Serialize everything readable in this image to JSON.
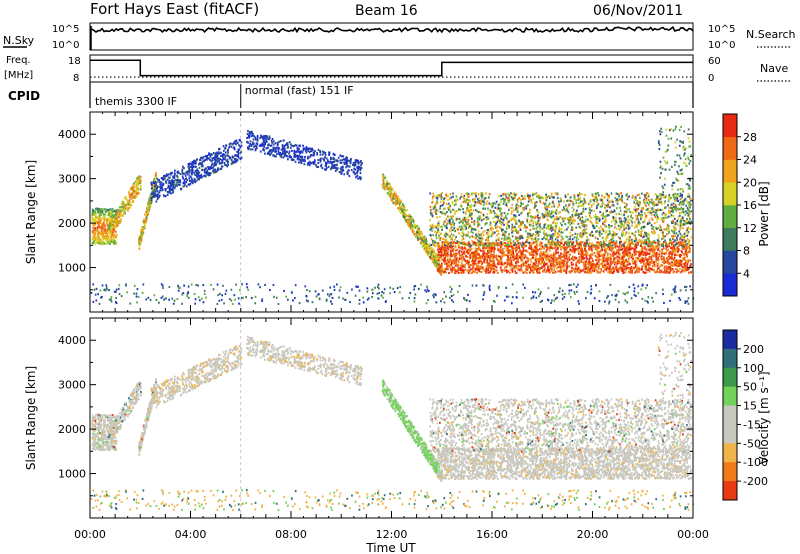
{
  "header": {
    "station": "Fort Hays East (fitACF)",
    "beam": "Beam 16",
    "date": "06/Nov/2011"
  },
  "status_panels": {
    "nsky_label": "N.Sky",
    "nsearch_label": "N.Search",
    "freq_label_line1": "Freq.",
    "freq_label_line2": "[MHz]",
    "nave_label": "Nave",
    "cpid_label": "CPID",
    "noise_ticks_left": [
      "10^5",
      "10^0"
    ],
    "noise_ticks_right": [
      "10^5",
      "10^0"
    ],
    "freq_ticks_left": [
      "18",
      "8"
    ],
    "nave_ticks_right": [
      "60",
      "0"
    ],
    "cpid_programs": [
      {
        "name": "themis 3300 IF",
        "start_hour": 0
      },
      {
        "name": "normal (fast) 151 IF",
        "start_hour": 6
      }
    ],
    "frequency_steps": [
      {
        "start_hour": 0,
        "end_hour": 2,
        "freq_mhz": 17
      },
      {
        "start_hour": 2,
        "end_hour": 14,
        "freq_mhz": 10
      },
      {
        "start_hour": 14,
        "end_hour": 24,
        "freq_mhz": 16
      }
    ],
    "nave_level": 8
  },
  "chart_data": [
    {
      "type": "heatmap",
      "name": "power-panel",
      "ylabel": "Slant Range [km]",
      "xlim": [
        0,
        24
      ],
      "ylim": [
        0,
        4500
      ],
      "yticks": [
        "1000",
        "2000",
        "3000",
        "4000"
      ],
      "colorbar": {
        "label": "Power [dB]",
        "ticks": [
          "4",
          "8",
          "12",
          "16",
          "20",
          "24",
          "28"
        ],
        "colors": [
          "#1a2bd6",
          "#27479e",
          "#3d7a5e",
          "#5fae3f",
          "#d8d226",
          "#f0a41d",
          "#ef6a15",
          "#e92a12"
        ],
        "range": [
          0,
          32
        ]
      }
    },
    {
      "type": "heatmap",
      "name": "velocity-panel",
      "ylabel": "Slant Range [km]",
      "xlabel": "Time UT",
      "xlim": [
        0,
        24
      ],
      "ylim": [
        0,
        4500
      ],
      "xticks": [
        "00:00",
        "04:00",
        "08:00",
        "12:00",
        "16:00",
        "20:00",
        "00:00"
      ],
      "yticks": [
        "1000",
        "2000",
        "3000",
        "4000"
      ],
      "colorbar": {
        "label": "Velocity [m s⁻¹]",
        "ticks": [
          "200",
          "100",
          "50",
          "15",
          "-15",
          "-50",
          "-100",
          "-200"
        ],
        "colors": [
          "#1d2ba0",
          "#2f6f7a",
          "#3d9a4a",
          "#72d35a",
          "#c8c8c0",
          "#c8c8c0",
          "#f0b44a",
          "#ef7a1a",
          "#e83a12"
        ]
      }
    }
  ]
}
